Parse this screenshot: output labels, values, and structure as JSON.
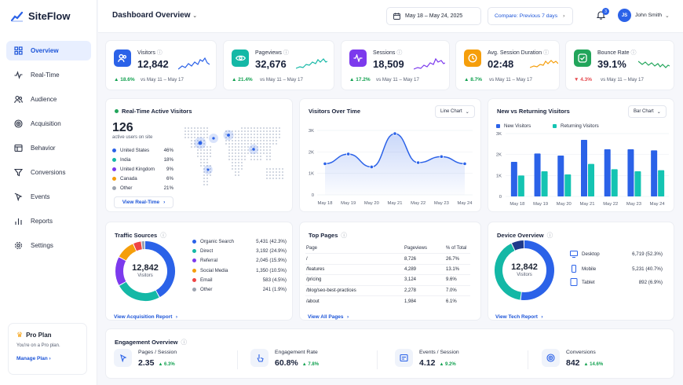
{
  "brand": {
    "name": "SiteFlow",
    "color": "#2b62e8"
  },
  "header": {
    "title": "Dashboard Overview",
    "date_range": "May 18 – May 24, 2025",
    "compare": "Compare: Previous 7 days",
    "notifications": "3",
    "user_initials": "JS",
    "user_name": "John Smith"
  },
  "sidebar": {
    "items": [
      {
        "label": "Overview",
        "icon": "grid-icon"
      },
      {
        "label": "Real-Time",
        "icon": "activity-icon"
      },
      {
        "label": "Audience",
        "icon": "users-icon"
      },
      {
        "label": "Acquisition",
        "icon": "target-icon"
      },
      {
        "label": "Behavior",
        "icon": "browser-icon"
      },
      {
        "label": "Conversions",
        "icon": "funnel-icon"
      },
      {
        "label": "Events",
        "icon": "cursor-icon"
      },
      {
        "label": "Reports",
        "icon": "bar-chart-icon"
      },
      {
        "label": "Settings",
        "icon": "gear-icon"
      }
    ]
  },
  "pro": {
    "title": "Pro Plan",
    "subtitle": "You're on a Pro plan.",
    "link": "Manage Plan"
  },
  "kpis": [
    {
      "label": "Visitors",
      "value": "12,842",
      "change": "18.6%",
      "vs": "vs May 11 – May 17",
      "color": "#2b62e8",
      "icon": "users-icon",
      "trend": "up"
    },
    {
      "label": "Pageviews",
      "value": "32,676",
      "change": "21.4%",
      "vs": "vs May 11 – May 17",
      "color": "#14b8a6",
      "icon": "eye-icon",
      "trend": "up"
    },
    {
      "label": "Sessions",
      "value": "18,509",
      "change": "17.2%",
      "vs": "vs May 11 – May 17",
      "color": "#7c3aed",
      "icon": "pulse-icon",
      "trend": "up"
    },
    {
      "label": "Avg. Session Duration",
      "value": "02:48",
      "change": "8.7%",
      "vs": "vs May 11 – May 17",
      "color": "#f59e0b",
      "icon": "clock-icon",
      "trend": "up"
    },
    {
      "label": "Bounce Rate",
      "value": "39.1%",
      "change": "4.3%",
      "vs": "vs May 11 – May 17",
      "color": "#22a55b",
      "icon": "check-icon",
      "trend": "down"
    }
  ],
  "realtime": {
    "title": "Real-Time Active Visitors",
    "count": "126",
    "subtitle": "active users on site",
    "link": "View Real-Time",
    "countries": [
      {
        "name": "United States",
        "pct": "46%",
        "color": "#2b62e8"
      },
      {
        "name": "India",
        "pct": "18%",
        "color": "#14b8a6"
      },
      {
        "name": "United Kingdom",
        "pct": "9%",
        "color": "#7c3aed"
      },
      {
        "name": "Canada",
        "pct": "6%",
        "color": "#f59e0b"
      },
      {
        "name": "Other",
        "pct": "21%",
        "color": "#9ca3af"
      }
    ]
  },
  "visitors_over_time": {
    "title": "Visitors Over Time",
    "select": "Line Chart"
  },
  "new_returning": {
    "title": "New vs Returning Visitors",
    "select": "Bar Chart",
    "legend_new": "New Visitors",
    "legend_returning": "Returning Visitors"
  },
  "chart_data": [
    {
      "type": "line",
      "x": [
        "May 18",
        "May 19",
        "May 20",
        "May 21",
        "May 22",
        "May 23",
        "May 24"
      ],
      "series": [
        {
          "values": [
            1450,
            1900,
            1300,
            2850,
            1500,
            1780,
            1450
          ]
        }
      ],
      "ylim": [
        0,
        3000
      ],
      "yticks": [
        "0",
        "1K",
        "2K",
        "3K"
      ]
    },
    {
      "type": "bar",
      "categories": [
        "May 18",
        "May 19",
        "May 20",
        "May 21",
        "May 22",
        "May 23",
        "May 24"
      ],
      "series": [
        {
          "name": "New Visitors",
          "values": [
            1650,
            2050,
            1950,
            2700,
            2250,
            2250,
            2200
          ]
        },
        {
          "name": "Returning Visitors",
          "values": [
            1000,
            1200,
            1050,
            1550,
            1300,
            1200,
            1250
          ]
        }
      ],
      "ylim": [
        0,
        3000
      ],
      "yticks": [
        "0",
        "1K",
        "2K",
        "3K"
      ]
    }
  ],
  "traffic": {
    "title": "Traffic Sources",
    "total": "12,842",
    "total_label": "Visitors",
    "link": "View Acquisition Report",
    "items": [
      {
        "name": "Organic Search",
        "value": "5,431 (42.3%)",
        "color": "#2b62e8",
        "pct": 42.3
      },
      {
        "name": "Direct",
        "value": "3,192 (24.9%)",
        "color": "#14b8a6",
        "pct": 24.9
      },
      {
        "name": "Referral",
        "value": "2,045 (15.9%)",
        "color": "#7c3aed",
        "pct": 15.9
      },
      {
        "name": "Social Media",
        "value": "1,350 (10.5%)",
        "color": "#f59e0b",
        "pct": 10.5
      },
      {
        "name": "Email",
        "value": "583 (4.5%)",
        "color": "#ef4444",
        "pct": 4.5
      },
      {
        "name": "Other",
        "value": "241 (1.9%)",
        "color": "#9ca3af",
        "pct": 1.9
      }
    ]
  },
  "top_pages": {
    "title": "Top Pages",
    "headers": [
      "Page",
      "Pageviews",
      "% of Total"
    ],
    "rows": [
      [
        "/",
        "8,726",
        "26.7%"
      ],
      [
        "/features",
        "4,289",
        "13.1%"
      ],
      [
        "/pricing",
        "3,124",
        "9.6%"
      ],
      [
        "/blog/seo-best-practices",
        "2,278",
        "7.0%"
      ],
      [
        "/about",
        "1,984",
        "6.1%"
      ]
    ],
    "link": "View All Pages"
  },
  "devices": {
    "title": "Device Overview",
    "total": "12,842",
    "total_label": "Visitors",
    "link": "View Tech Report",
    "items": [
      {
        "name": "Desktop",
        "value": "6,719 (52.3%)",
        "icon": "monitor-icon",
        "pct": 52.3,
        "color": "#2b62e8"
      },
      {
        "name": "Mobile",
        "value": "5,231 (40.7%)",
        "icon": "phone-icon",
        "pct": 40.7,
        "color": "#14b8a6"
      },
      {
        "name": "Tablet",
        "value": "892 (6.9%)",
        "icon": "tablet-icon",
        "pct": 6.9,
        "color": "#1e3a8a"
      }
    ]
  },
  "engagement": {
    "title": "Engagement Overview",
    "items": [
      {
        "label": "Pages / Session",
        "value": "2.35",
        "change": "6.3%",
        "icon": "cursor-icon"
      },
      {
        "label": "Engagement Rate",
        "value": "60.8%",
        "change": "7.8%",
        "icon": "touch-icon"
      },
      {
        "label": "Events / Session",
        "value": "4.12",
        "change": "9.2%",
        "icon": "events-icon"
      },
      {
        "label": "Conversions",
        "value": "842",
        "change": "14.6%",
        "icon": "target-icon"
      }
    ]
  }
}
